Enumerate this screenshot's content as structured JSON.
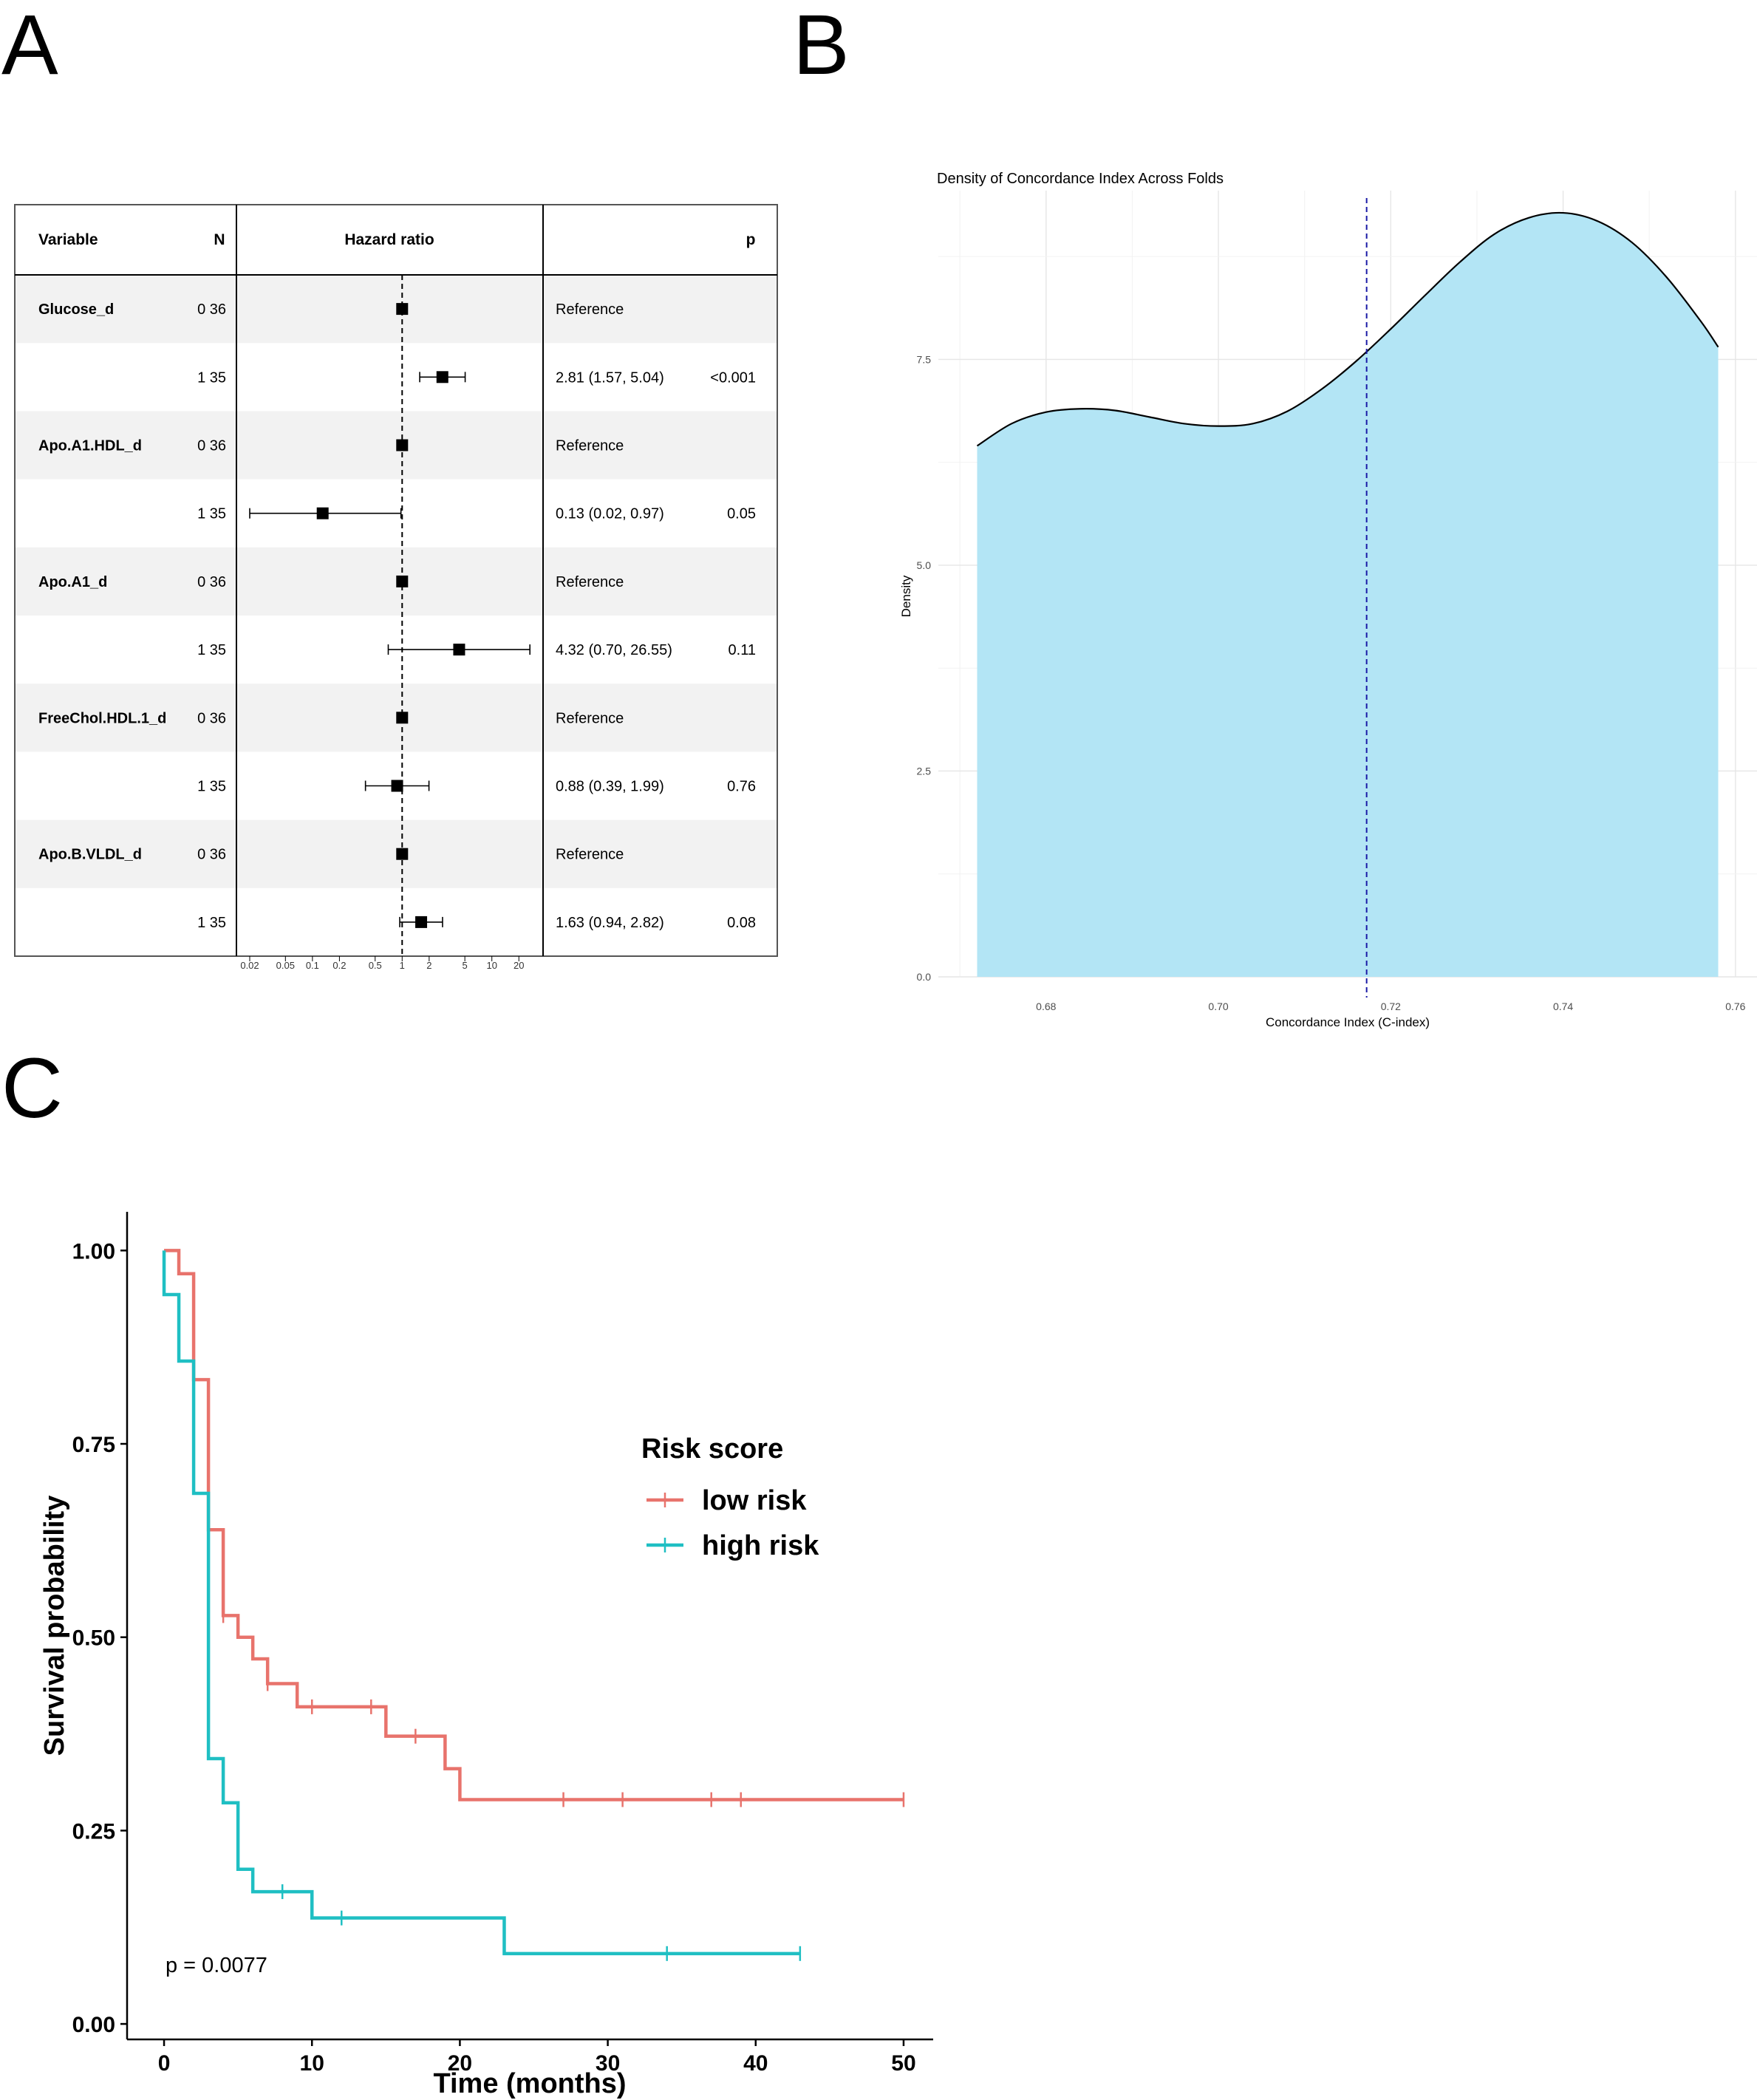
{
  "panels": {
    "A": {
      "label": "A"
    },
    "B": {
      "label": "B"
    },
    "C": {
      "label": "C"
    }
  },
  "chart_data": [
    {
      "id": "forest",
      "type": "table",
      "kind": "forest-plot",
      "headers": {
        "variable": "Variable",
        "n": "N",
        "hr": "Hazard ratio",
        "p": "p"
      },
      "rows": [
        {
          "variable": "Glucose_d",
          "level": "0",
          "n": "36",
          "hr": 1.0,
          "lo": null,
          "hi": null,
          "text": "Reference",
          "p": ""
        },
        {
          "variable": "",
          "level": "1",
          "n": "35",
          "hr": 2.81,
          "lo": 1.57,
          "hi": 5.04,
          "text": "2.81 (1.57, 5.04)",
          "p": "<0.001"
        },
        {
          "variable": "Apo.A1.HDL_d",
          "level": "0",
          "n": "36",
          "hr": 1.0,
          "lo": null,
          "hi": null,
          "text": "Reference",
          "p": ""
        },
        {
          "variable": "",
          "level": "1",
          "n": "35",
          "hr": 0.13,
          "lo": 0.02,
          "hi": 0.97,
          "text": "0.13 (0.02, 0.97)",
          "p": "0.05"
        },
        {
          "variable": "Apo.A1_d",
          "level": "0",
          "n": "36",
          "hr": 1.0,
          "lo": null,
          "hi": null,
          "text": "Reference",
          "p": ""
        },
        {
          "variable": "",
          "level": "1",
          "n": "35",
          "hr": 4.32,
          "lo": 0.7,
          "hi": 26.55,
          "text": "4.32 (0.70, 26.55)",
          "p": "0.11"
        },
        {
          "variable": "FreeChol.HDL.1_d",
          "level": "0",
          "n": "36",
          "hr": 1.0,
          "lo": null,
          "hi": null,
          "text": "Reference",
          "p": ""
        },
        {
          "variable": "",
          "level": "1",
          "n": "35",
          "hr": 0.88,
          "lo": 0.39,
          "hi": 1.99,
          "text": "0.88 (0.39, 1.99)",
          "p": "0.76"
        },
        {
          "variable": "Apo.B.VLDL_d",
          "level": "0",
          "n": "36",
          "hr": 1.0,
          "lo": null,
          "hi": null,
          "text": "Reference",
          "p": ""
        },
        {
          "variable": "",
          "level": "1",
          "n": "35",
          "hr": 1.63,
          "lo": 0.94,
          "hi": 2.82,
          "text": "1.63 (0.94, 2.82)",
          "p": "0.08"
        }
      ],
      "xscale": "log",
      "xlim": [
        0.02,
        28
      ],
      "xticks": [
        0.02,
        0.05,
        0.1,
        0.2,
        0.5,
        1,
        2,
        5,
        10,
        20
      ],
      "xtick_labels": [
        "0.02",
        "0.05",
        "0.1",
        "0.2",
        "0.5",
        "1",
        "2",
        "5",
        "10",
        "20"
      ],
      "reference": 1
    },
    {
      "id": "density",
      "type": "area",
      "title": "Density of Concordance Index Across Folds",
      "xlabel": "Concordance Index (C-index)",
      "ylabel": "Density",
      "x": [
        0.672,
        0.676,
        0.68,
        0.684,
        0.688,
        0.692,
        0.696,
        0.7,
        0.704,
        0.708,
        0.712,
        0.716,
        0.72,
        0.724,
        0.728,
        0.732,
        0.736,
        0.74,
        0.744,
        0.748,
        0.752,
        0.756,
        0.758
      ],
      "y": [
        6.45,
        6.72,
        6.86,
        6.9,
        6.88,
        6.8,
        6.72,
        6.69,
        6.72,
        6.87,
        7.14,
        7.48,
        7.87,
        8.28,
        8.68,
        9.02,
        9.22,
        9.28,
        9.18,
        8.92,
        8.5,
        7.96,
        7.65
      ],
      "xlim": [
        0.6675,
        0.7625
      ],
      "ylim": [
        0,
        9.55
      ],
      "xticks": [
        0.68,
        0.7,
        0.72,
        0.74,
        0.76
      ],
      "xtick_labels": [
        "0.68",
        "0.70",
        "0.72",
        "0.74",
        "0.76"
      ],
      "yticks": [
        0,
        2.5,
        5,
        7.5
      ],
      "ytick_labels": [
        "0.0",
        "2.5",
        "5.0",
        "7.5"
      ],
      "vline": 0.7172,
      "fill_color": "#b3e5f5",
      "line_color": "#000000",
      "vline_color": "#1a1aa6",
      "grid": true
    },
    {
      "id": "km",
      "type": "line",
      "kind": "kaplan-meier",
      "xlabel": "Time (months)",
      "ylabel": "Survival probability",
      "xlim": [
        -2.5,
        52
      ],
      "ylim": [
        -0.02,
        1.05
      ],
      "xticks": [
        0,
        10,
        20,
        30,
        40,
        50
      ],
      "xtick_labels": [
        "0",
        "10",
        "20",
        "30",
        "40",
        "50"
      ],
      "yticks": [
        0,
        0.25,
        0.5,
        0.75,
        1.0
      ],
      "ytick_labels": [
        "0.00",
        "0.25",
        "0.50",
        "0.75",
        "1.00"
      ],
      "annotation": "p = 0.0077",
      "legend": {
        "title": "Risk score",
        "position": "right"
      },
      "series": [
        {
          "name": "low risk",
          "color": "#e8736c",
          "steps": [
            [
              0,
              1.0
            ],
            [
              1,
              0.97
            ],
            [
              2,
              0.833
            ],
            [
              3,
              0.639
            ],
            [
              4,
              0.528
            ],
            [
              5,
              0.5
            ],
            [
              6,
              0.472
            ],
            [
              7,
              0.44
            ],
            [
              9,
              0.41
            ],
            [
              15,
              0.372
            ],
            [
              19,
              0.33
            ],
            [
              20,
              0.29
            ],
            [
              50,
              0.29
            ]
          ],
          "censors": [
            [
              4,
              0.528
            ],
            [
              7,
              0.44
            ],
            [
              10,
              0.41
            ],
            [
              14,
              0.41
            ],
            [
              17,
              0.372
            ],
            [
              27,
              0.29
            ],
            [
              31,
              0.29
            ],
            [
              37,
              0.29
            ],
            [
              39,
              0.29
            ],
            [
              50,
              0.29
            ]
          ]
        },
        {
          "name": "high risk",
          "color": "#1fbfc3",
          "steps": [
            [
              0,
              0.943
            ],
            [
              1,
              0.857
            ],
            [
              2,
              0.686
            ],
            [
              3,
              0.343
            ],
            [
              4,
              0.286
            ],
            [
              5,
              0.2
            ],
            [
              6,
              0.171
            ],
            [
              10,
              0.137
            ],
            [
              23,
              0.091
            ],
            [
              43,
              0.091
            ]
          ],
          "censors": [
            [
              8,
              0.171
            ],
            [
              12,
              0.137
            ],
            [
              34,
              0.091
            ],
            [
              43,
              0.091
            ]
          ]
        }
      ]
    }
  ]
}
